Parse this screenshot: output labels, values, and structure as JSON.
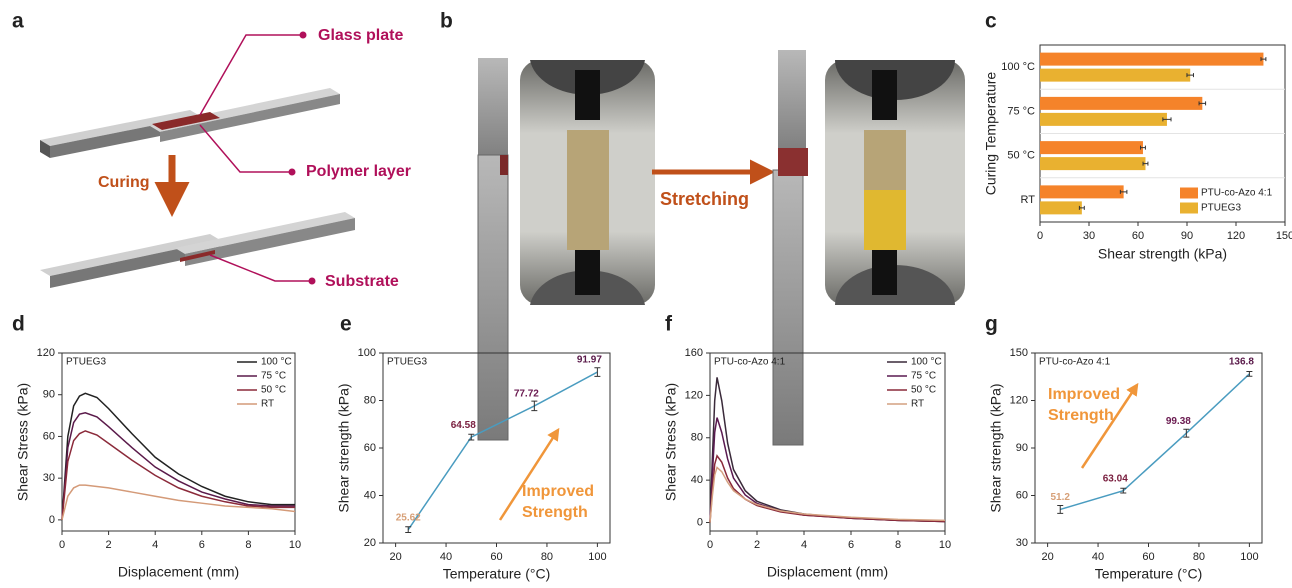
{
  "panel_labels": [
    "a",
    "b",
    "c",
    "d",
    "e",
    "f",
    "g"
  ],
  "schematic": {
    "labels": [
      "Glass plate",
      "Polymer layer",
      "Substrate"
    ],
    "process": "Curing"
  },
  "setup": {
    "process": "Stretching"
  },
  "chart_data": [
    {
      "type": "bar",
      "orientation": "horizontal",
      "xlabel": "Shear strength (kPa)",
      "ylabel": "Curing Temperature",
      "categories": [
        "RT",
        "50 °C",
        "75 °C",
        "100 °C"
      ],
      "series": [
        {
          "name": "PTU-co-Azo 4:1",
          "color": "#f5832a",
          "values": [
            51.2,
            63.04,
            99.38,
            136.8
          ],
          "errors": [
            2,
            1.5,
            2,
            1.5
          ]
        },
        {
          "name": "PTUEG3",
          "color": "#e9b130",
          "values": [
            25.62,
            64.58,
            77.72,
            91.97
          ],
          "errors": [
            1.5,
            1.5,
            2.5,
            2
          ]
        }
      ],
      "xlim": [
        0,
        150
      ],
      "xticks": [
        0,
        30,
        60,
        90,
        120,
        150
      ],
      "legend": "lower right"
    },
    {
      "type": "line",
      "inset_label": "PTUEG3",
      "xlabel": "Displacement (mm)",
      "ylabel": "Shear Stress (kPa)",
      "x": [
        0,
        0.25,
        0.5,
        0.75,
        1,
        1.5,
        2,
        3,
        4,
        5,
        6,
        7,
        8,
        9,
        10
      ],
      "series": [
        {
          "name": "100 °C",
          "color": "#222222",
          "values": [
            0,
            60,
            82,
            89,
            91,
            88,
            80,
            62,
            45,
            33,
            24,
            17,
            13,
            11,
            11
          ]
        },
        {
          "name": "75 °C",
          "color": "#5a1a4a",
          "values": [
            0,
            52,
            70,
            76,
            77,
            74,
            67,
            52,
            38,
            28,
            20,
            15,
            11,
            10,
            10
          ]
        },
        {
          "name": "50 °C",
          "color": "#8b2a3a",
          "values": [
            0,
            42,
            57,
            62,
            64,
            61,
            55,
            43,
            32,
            23,
            17,
            13,
            10,
            9,
            9
          ]
        },
        {
          "name": "RT",
          "color": "#d49a78",
          "values": [
            0,
            17,
            23,
            25,
            25,
            24,
            23,
            20,
            17,
            14,
            12,
            10,
            9,
            8,
            6
          ]
        }
      ],
      "xlim": [
        0,
        10
      ],
      "xticks": [
        0,
        2,
        4,
        6,
        8,
        10
      ],
      "ylim": [
        -8,
        120
      ],
      "yticks": [
        0,
        30,
        60,
        90,
        120
      ],
      "legend": "upper right"
    },
    {
      "type": "line",
      "inset_label": "PTUEG3",
      "xlabel": "Temperature (°C)",
      "ylabel": "Shear strength (kPa)",
      "x": [
        25,
        50,
        75,
        100
      ],
      "series": [
        {
          "color": "#4a9cc0",
          "values": [
            25.62,
            64.58,
            77.72,
            91.97
          ],
          "errors": [
            1.2,
            1.2,
            2,
            1.8
          ],
          "label_colors": [
            "#d7a078",
            "#7a2040",
            "#6a1a50",
            "#5a1a4a"
          ]
        }
      ],
      "annotation": [
        "Improved",
        "Strength"
      ],
      "annotation_color": "#f0963a",
      "xlim": [
        15,
        105
      ],
      "xticks": [
        20,
        40,
        60,
        80,
        100
      ],
      "ylim": [
        20,
        100
      ],
      "yticks": [
        20,
        40,
        60,
        80,
        100
      ]
    },
    {
      "type": "line",
      "inset_label": "PTU-co-Azo 4:1",
      "xlabel": "Displacement (mm)",
      "ylabel": "Shear Stress (kPa)",
      "x": [
        0,
        0.1,
        0.2,
        0.3,
        0.5,
        0.75,
        1,
        1.5,
        2,
        3,
        4,
        6,
        8,
        10
      ],
      "series": [
        {
          "name": "100 °C",
          "color": "#3a2a3a",
          "values": [
            0,
            60,
            115,
            137,
            115,
            75,
            50,
            30,
            20,
            12,
            8,
            4,
            2,
            1
          ]
        },
        {
          "name": "75 °C",
          "color": "#5a1a50",
          "values": [
            0,
            45,
            85,
            99,
            85,
            60,
            42,
            26,
            18,
            11,
            7,
            4,
            2,
            1
          ]
        },
        {
          "name": "50 °C",
          "color": "#8a2a3a",
          "values": [
            0,
            30,
            55,
            63,
            57,
            42,
            32,
            22,
            16,
            10,
            7,
            4,
            2,
            1
          ]
        },
        {
          "name": "RT",
          "color": "#d4a080",
          "values": [
            0,
            25,
            45,
            52,
            48,
            38,
            30,
            22,
            17,
            11,
            8,
            5,
            3,
            2
          ]
        }
      ],
      "xlim": [
        0,
        10
      ],
      "xticks": [
        0,
        2,
        4,
        6,
        8,
        10
      ],
      "ylim": [
        -8,
        160
      ],
      "yticks": [
        0,
        40,
        80,
        120,
        160
      ],
      "legend": "upper right"
    },
    {
      "type": "line",
      "inset_label": "PTU-co-Azo 4:1",
      "xlabel": "Temperature (°C)",
      "ylabel": "Shear strength (kPa)",
      "x": [
        25,
        50,
        75,
        100
      ],
      "series": [
        {
          "color": "#4a9cc0",
          "values": [
            51.2,
            63.04,
            99.38,
            136.8
          ],
          "errors": [
            2.5,
            1.5,
            2.5,
            1.5
          ],
          "label_colors": [
            "#d7a078",
            "#7a2040",
            "#6a1a50",
            "#5a1a4a"
          ]
        }
      ],
      "annotation": [
        "Improved",
        "Strength"
      ],
      "annotation_color": "#f0963a",
      "xlim": [
        15,
        105
      ],
      "xticks": [
        20,
        40,
        60,
        80,
        100
      ],
      "ylim": [
        30,
        150
      ],
      "yticks": [
        30,
        60,
        90,
        120,
        150
      ]
    }
  ]
}
